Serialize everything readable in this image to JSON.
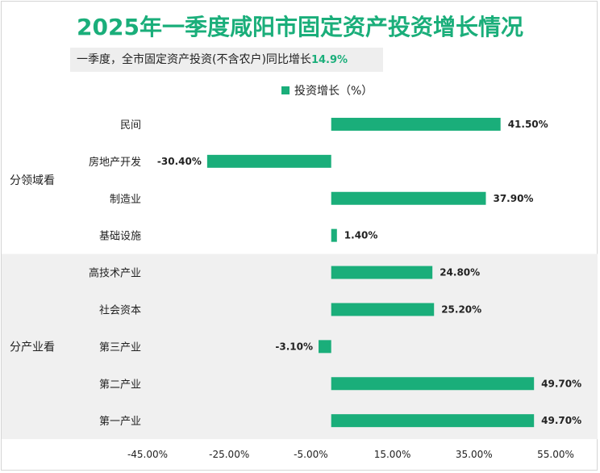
{
  "title": "2025年一季度咸阳市固定资产投资增长情况",
  "subtitle": {
    "text": "一季度，全市固定资产投资(不含农户)同比增长",
    "highlight": "14.9%"
  },
  "colors": {
    "accent": "#1aae7a",
    "band": "#f0f0f0"
  },
  "chart_data": {
    "type": "bar",
    "orientation": "horizontal",
    "legend": {
      "label": "投资增长（%）",
      "position": "top"
    },
    "categories": [
      "民间",
      "房地产开发",
      "制造业",
      "基础设施",
      "高技术产业",
      "社会资本",
      "第三产业",
      "第二产业",
      "第一产业"
    ],
    "groups": [
      {
        "name": "分领域看",
        "categories": [
          "民间",
          "房地产开发",
          "制造业",
          "基础设施"
        ]
      },
      {
        "name": "分产业看",
        "categories": [
          "高技术产业",
          "社会资本",
          "第三产业",
          "第二产业",
          "第一产业"
        ]
      }
    ],
    "values": [
      41.5,
      -30.4,
      37.9,
      1.4,
      24.8,
      25.2,
      -3.1,
      49.7,
      49.7
    ],
    "value_labels": [
      "41.50%",
      "-30.40%",
      "37.90%",
      "1.40%",
      "24.80%",
      "25.20%",
      "-3.10%",
      "49.70%",
      "49.70%"
    ],
    "xlim": [
      -45,
      55
    ],
    "xticks": [
      -45,
      -25,
      -5,
      15,
      35,
      55
    ],
    "xtick_labels": [
      "-45.00%",
      "-25.00%",
      "-5.00%",
      "15.00%",
      "35.00%",
      "55.00%"
    ],
    "grid": false
  }
}
